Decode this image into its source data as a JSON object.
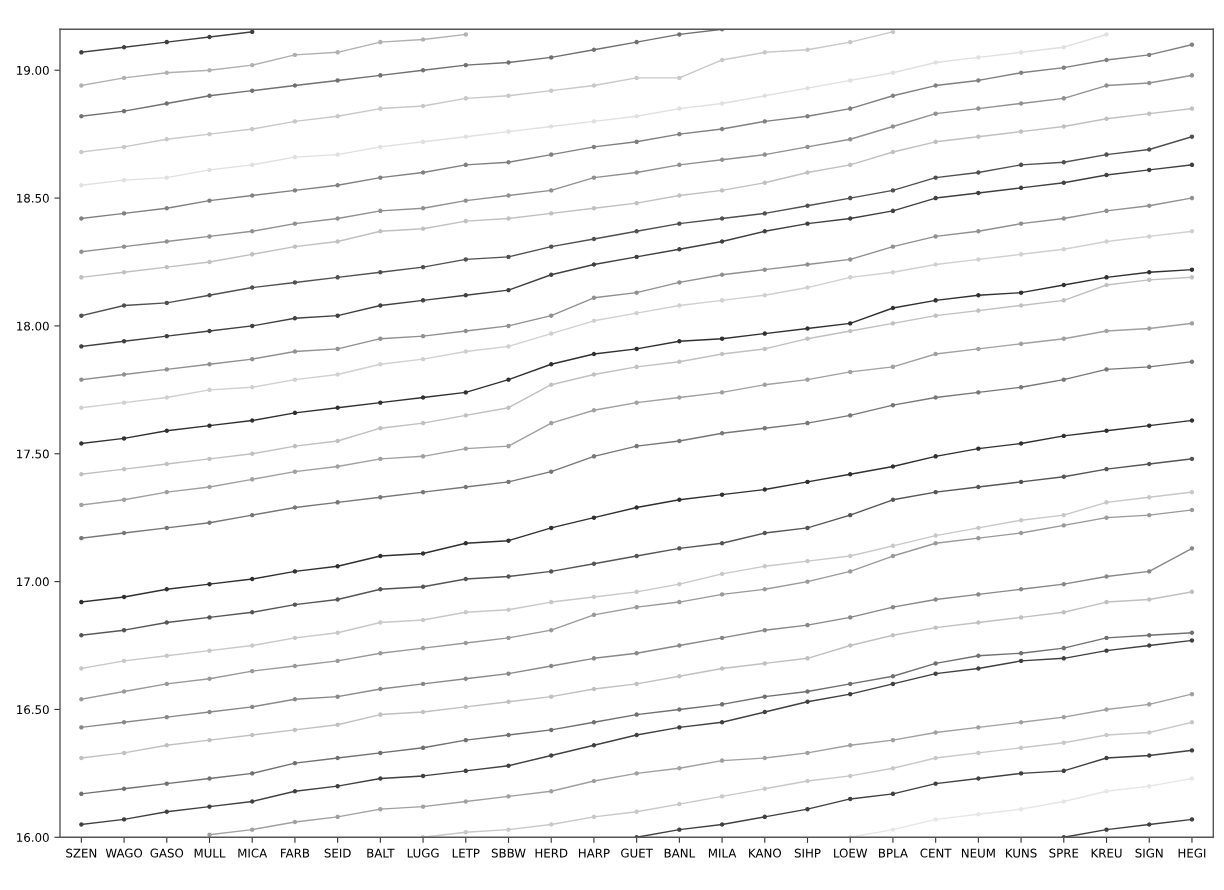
{
  "chart_data": {
    "type": "line",
    "categories": [
      "SZEN",
      "WAGO",
      "GASO",
      "MULL",
      "MICA",
      "FARB",
      "SEID",
      "BALT",
      "LUGG",
      "LETP",
      "SBBW",
      "HERD",
      "HARP",
      "GUET",
      "BANL",
      "MILA",
      "KANO",
      "SIHP",
      "LOEW",
      "BPLA",
      "CENT",
      "NEUM",
      "KUNS",
      "SPRE",
      "KREU",
      "SIGN",
      "HEGI"
    ],
    "ylim": [
      16.0,
      19.16
    ],
    "yticks": [
      {
        "value": 16.0,
        "label": "16.00"
      },
      {
        "value": 16.5,
        "label": "16.50"
      },
      {
        "value": 17.0,
        "label": "17.00"
      },
      {
        "value": 17.5,
        "label": "17.50"
      },
      {
        "value": 18.0,
        "label": "18.00"
      },
      {
        "value": 18.5,
        "label": "18.50"
      },
      {
        "value": 19.0,
        "label": "19.00"
      }
    ],
    "marker": "circle",
    "line_style": "solid",
    "grid": false,
    "series": [
      {
        "color": "#404040",
        "values": [
          19.07,
          19.09,
          19.11,
          19.13,
          19.15,
          null,
          null,
          null,
          null,
          null,
          null,
          null,
          null,
          null,
          null,
          null,
          null,
          null,
          null,
          null,
          null,
          null,
          null,
          null,
          null,
          null,
          null
        ]
      },
      {
        "color": "#b0b0b0",
        "values": [
          18.94,
          18.97,
          18.99,
          19.0,
          19.02,
          19.06,
          19.07,
          19.11,
          19.12,
          19.14,
          null,
          null,
          null,
          null,
          null,
          null,
          null,
          null,
          null,
          null,
          null,
          null,
          null,
          null,
          null,
          null,
          null
        ]
      },
      {
        "color": "#707070",
        "values": [
          18.82,
          18.84,
          18.87,
          18.9,
          18.92,
          18.94,
          18.96,
          18.98,
          19.0,
          19.02,
          19.03,
          19.05,
          19.08,
          19.11,
          19.14,
          19.16,
          null,
          null,
          null,
          null,
          null,
          null,
          null,
          null,
          null,
          null,
          null
        ]
      },
      {
        "color": "#c8c8c8",
        "values": [
          18.68,
          18.7,
          18.73,
          18.75,
          18.77,
          18.8,
          18.82,
          18.85,
          18.86,
          18.89,
          18.9,
          18.92,
          18.94,
          18.97,
          18.97,
          19.04,
          19.07,
          19.08,
          19.11,
          19.15,
          null,
          null,
          null,
          null,
          null,
          null,
          null
        ]
      },
      {
        "color": "#e0e0e0",
        "values": [
          18.55,
          18.57,
          18.58,
          18.61,
          18.63,
          18.66,
          18.67,
          18.7,
          18.72,
          18.74,
          18.76,
          18.78,
          18.8,
          18.82,
          18.85,
          18.87,
          18.9,
          18.93,
          18.96,
          18.99,
          19.03,
          19.05,
          19.07,
          19.09,
          19.14,
          null,
          null
        ]
      },
      {
        "color": "#808080",
        "values": [
          18.42,
          18.44,
          18.46,
          18.49,
          18.51,
          18.53,
          18.55,
          18.58,
          18.6,
          18.63,
          18.64,
          18.67,
          18.7,
          18.72,
          18.75,
          18.77,
          18.8,
          18.82,
          18.85,
          18.9,
          18.94,
          18.96,
          18.99,
          19.01,
          19.04,
          19.06,
          19.1
        ]
      },
      {
        "color": "#909090",
        "values": [
          18.29,
          18.31,
          18.33,
          18.35,
          18.37,
          18.4,
          18.42,
          18.45,
          18.46,
          18.49,
          18.51,
          18.53,
          18.58,
          18.6,
          18.63,
          18.65,
          18.67,
          18.7,
          18.73,
          18.78,
          18.83,
          18.85,
          18.87,
          18.89,
          18.94,
          18.95,
          18.98
        ]
      },
      {
        "color": "#c0c0c0",
        "values": [
          18.19,
          18.21,
          18.23,
          18.25,
          18.28,
          18.31,
          18.33,
          18.37,
          18.38,
          18.41,
          18.42,
          18.44,
          18.46,
          18.48,
          18.51,
          18.53,
          18.56,
          18.6,
          18.63,
          18.68,
          18.72,
          18.74,
          18.76,
          18.78,
          18.81,
          18.83,
          18.85
        ]
      },
      {
        "color": "#505050",
        "values": [
          18.04,
          18.08,
          18.09,
          18.12,
          18.15,
          18.17,
          18.19,
          18.21,
          18.23,
          18.26,
          18.27,
          18.31,
          18.34,
          18.37,
          18.4,
          18.42,
          18.44,
          18.47,
          18.5,
          18.53,
          18.58,
          18.6,
          18.63,
          18.64,
          18.67,
          18.69,
          18.74
        ]
      },
      {
        "color": "#404040",
        "values": [
          17.92,
          17.94,
          17.96,
          17.98,
          18.0,
          18.03,
          18.04,
          18.08,
          18.1,
          18.12,
          18.14,
          18.2,
          18.24,
          18.27,
          18.3,
          18.33,
          18.37,
          18.4,
          18.42,
          18.45,
          18.5,
          18.52,
          18.54,
          18.56,
          18.59,
          18.61,
          18.63
        ]
      },
      {
        "color": "#909090",
        "values": [
          17.79,
          17.81,
          17.83,
          17.85,
          17.87,
          17.9,
          17.91,
          17.95,
          17.96,
          17.98,
          18.0,
          18.04,
          18.11,
          18.13,
          18.17,
          18.2,
          18.22,
          18.24,
          18.26,
          18.31,
          18.35,
          18.37,
          18.4,
          18.42,
          18.45,
          18.47,
          18.5
        ]
      },
      {
        "color": "#d0d0d0",
        "values": [
          17.68,
          17.7,
          17.72,
          17.75,
          17.76,
          17.79,
          17.81,
          17.85,
          17.87,
          17.9,
          17.92,
          17.97,
          18.02,
          18.05,
          18.08,
          18.1,
          18.12,
          18.15,
          18.19,
          18.21,
          18.24,
          18.26,
          18.28,
          18.3,
          18.33,
          18.35,
          18.37
        ]
      },
      {
        "color": "#303030",
        "values": [
          17.54,
          17.56,
          17.59,
          17.61,
          17.63,
          17.66,
          17.68,
          17.7,
          17.72,
          17.74,
          17.79,
          17.85,
          17.89,
          17.91,
          17.94,
          17.95,
          17.97,
          17.99,
          18.01,
          18.07,
          18.1,
          18.12,
          18.13,
          18.16,
          18.19,
          18.21,
          18.22
        ]
      },
      {
        "color": "#c0c0c0",
        "values": [
          17.42,
          17.44,
          17.46,
          17.48,
          17.5,
          17.53,
          17.55,
          17.6,
          17.62,
          17.65,
          17.68,
          17.77,
          17.81,
          17.84,
          17.86,
          17.89,
          17.91,
          17.95,
          17.98,
          18.01,
          18.04,
          18.06,
          18.08,
          18.1,
          18.16,
          18.18,
          18.19
        ]
      },
      {
        "color": "#a0a0a0",
        "values": [
          17.3,
          17.32,
          17.35,
          17.37,
          17.4,
          17.43,
          17.45,
          17.48,
          17.49,
          17.52,
          17.53,
          17.62,
          17.67,
          17.7,
          17.72,
          17.74,
          17.77,
          17.79,
          17.82,
          17.84,
          17.89,
          17.91,
          17.93,
          17.95,
          17.98,
          17.99,
          18.01
        ]
      },
      {
        "color": "#777777",
        "values": [
          17.17,
          17.19,
          17.21,
          17.23,
          17.26,
          17.29,
          17.31,
          17.33,
          17.35,
          17.37,
          17.39,
          17.43,
          17.49,
          17.53,
          17.55,
          17.58,
          17.6,
          17.62,
          17.65,
          17.69,
          17.72,
          17.74,
          17.76,
          17.79,
          17.83,
          17.84,
          17.86
        ]
      },
      {
        "color": "#303030",
        "values": [
          16.92,
          16.94,
          16.97,
          16.99,
          17.01,
          17.04,
          17.06,
          17.1,
          17.11,
          17.15,
          17.16,
          17.21,
          17.25,
          17.29,
          17.32,
          17.34,
          17.36,
          17.39,
          17.42,
          17.45,
          17.49,
          17.52,
          17.54,
          17.57,
          17.59,
          17.61,
          17.63
        ]
      },
      {
        "color": "#555555",
        "values": [
          16.79,
          16.81,
          16.84,
          16.86,
          16.88,
          16.91,
          16.93,
          16.97,
          16.98,
          17.01,
          17.02,
          17.04,
          17.07,
          17.1,
          17.13,
          17.15,
          17.19,
          17.21,
          17.26,
          17.32,
          17.35,
          17.37,
          17.39,
          17.41,
          17.44,
          17.46,
          17.48
        ]
      },
      {
        "color": "#c8c8c8",
        "values": [
          16.66,
          16.69,
          16.71,
          16.73,
          16.75,
          16.78,
          16.8,
          16.84,
          16.85,
          16.88,
          16.89,
          16.92,
          16.94,
          16.96,
          16.99,
          17.03,
          17.06,
          17.08,
          17.1,
          17.14,
          17.18,
          17.21,
          17.24,
          17.26,
          17.31,
          17.33,
          17.35
        ]
      },
      {
        "color": "#999999",
        "values": [
          16.54,
          16.57,
          16.6,
          16.62,
          16.65,
          16.67,
          16.69,
          16.72,
          16.74,
          16.76,
          16.78,
          16.81,
          16.87,
          16.9,
          16.92,
          16.95,
          16.97,
          17.0,
          17.04,
          17.1,
          17.15,
          17.17,
          17.19,
          17.22,
          17.25,
          17.26,
          17.28
        ]
      },
      {
        "color": "#888888",
        "values": [
          16.43,
          16.45,
          16.47,
          16.49,
          16.51,
          16.54,
          16.55,
          16.58,
          16.6,
          16.62,
          16.64,
          16.67,
          16.7,
          16.72,
          16.75,
          16.78,
          16.81,
          16.83,
          16.86,
          16.9,
          16.93,
          16.95,
          16.97,
          16.99,
          17.02,
          17.04,
          17.13
        ]
      },
      {
        "color": "#c0c0c0",
        "values": [
          16.31,
          16.33,
          16.36,
          16.38,
          16.4,
          16.42,
          16.44,
          16.48,
          16.49,
          16.51,
          16.53,
          16.55,
          16.58,
          16.6,
          16.63,
          16.66,
          16.68,
          16.7,
          16.75,
          16.79,
          16.82,
          16.84,
          16.86,
          16.88,
          16.92,
          16.93,
          16.96
        ]
      },
      {
        "color": "#707070",
        "values": [
          16.17,
          16.19,
          16.21,
          16.23,
          16.25,
          16.29,
          16.31,
          16.33,
          16.35,
          16.38,
          16.4,
          16.42,
          16.45,
          16.48,
          16.5,
          16.52,
          16.55,
          16.57,
          16.6,
          16.63,
          16.68,
          16.71,
          16.72,
          16.74,
          16.78,
          16.79,
          16.8
        ]
      },
      {
        "color": "#404040",
        "values": [
          16.05,
          16.07,
          16.1,
          16.12,
          16.14,
          16.18,
          16.2,
          16.23,
          16.24,
          16.26,
          16.28,
          16.32,
          16.36,
          16.4,
          16.43,
          16.45,
          16.49,
          16.53,
          16.56,
          16.6,
          16.64,
          16.66,
          16.69,
          16.7,
          16.73,
          16.75,
          16.77
        ]
      },
      {
        "color": "#a0a0a0",
        "values": [
          null,
          null,
          null,
          16.01,
          16.03,
          16.06,
          16.08,
          16.11,
          16.12,
          16.14,
          16.16,
          16.18,
          16.22,
          16.25,
          16.27,
          16.3,
          16.31,
          16.33,
          16.36,
          16.38,
          16.41,
          16.43,
          16.45,
          16.47,
          16.5,
          16.52,
          16.56
        ]
      },
      {
        "color": "#c8c8c8",
        "values": [
          null,
          null,
          null,
          null,
          null,
          null,
          null,
          null,
          16.0,
          16.02,
          16.03,
          16.05,
          16.08,
          16.1,
          16.13,
          16.16,
          16.19,
          16.22,
          16.24,
          16.27,
          16.31,
          16.33,
          16.35,
          16.37,
          16.4,
          16.41,
          16.45
        ]
      },
      {
        "color": "#404040",
        "values": [
          null,
          null,
          null,
          null,
          null,
          null,
          null,
          null,
          null,
          null,
          null,
          null,
          null,
          16.0,
          16.03,
          16.05,
          16.08,
          16.11,
          16.15,
          16.17,
          16.21,
          16.23,
          16.25,
          16.26,
          16.31,
          16.32,
          16.34
        ]
      },
      {
        "color": "#e6e6e6",
        "values": [
          null,
          null,
          null,
          null,
          null,
          null,
          null,
          null,
          null,
          null,
          null,
          null,
          null,
          null,
          null,
          null,
          null,
          null,
          16.0,
          16.03,
          16.07,
          16.09,
          16.11,
          16.14,
          16.18,
          16.2,
          16.23
        ]
      },
      {
        "color": "#404040",
        "values": [
          null,
          null,
          null,
          null,
          null,
          null,
          null,
          null,
          null,
          null,
          null,
          null,
          null,
          null,
          null,
          null,
          null,
          null,
          null,
          null,
          null,
          null,
          null,
          16.0,
          16.03,
          16.05,
          16.07
        ]
      }
    ]
  }
}
